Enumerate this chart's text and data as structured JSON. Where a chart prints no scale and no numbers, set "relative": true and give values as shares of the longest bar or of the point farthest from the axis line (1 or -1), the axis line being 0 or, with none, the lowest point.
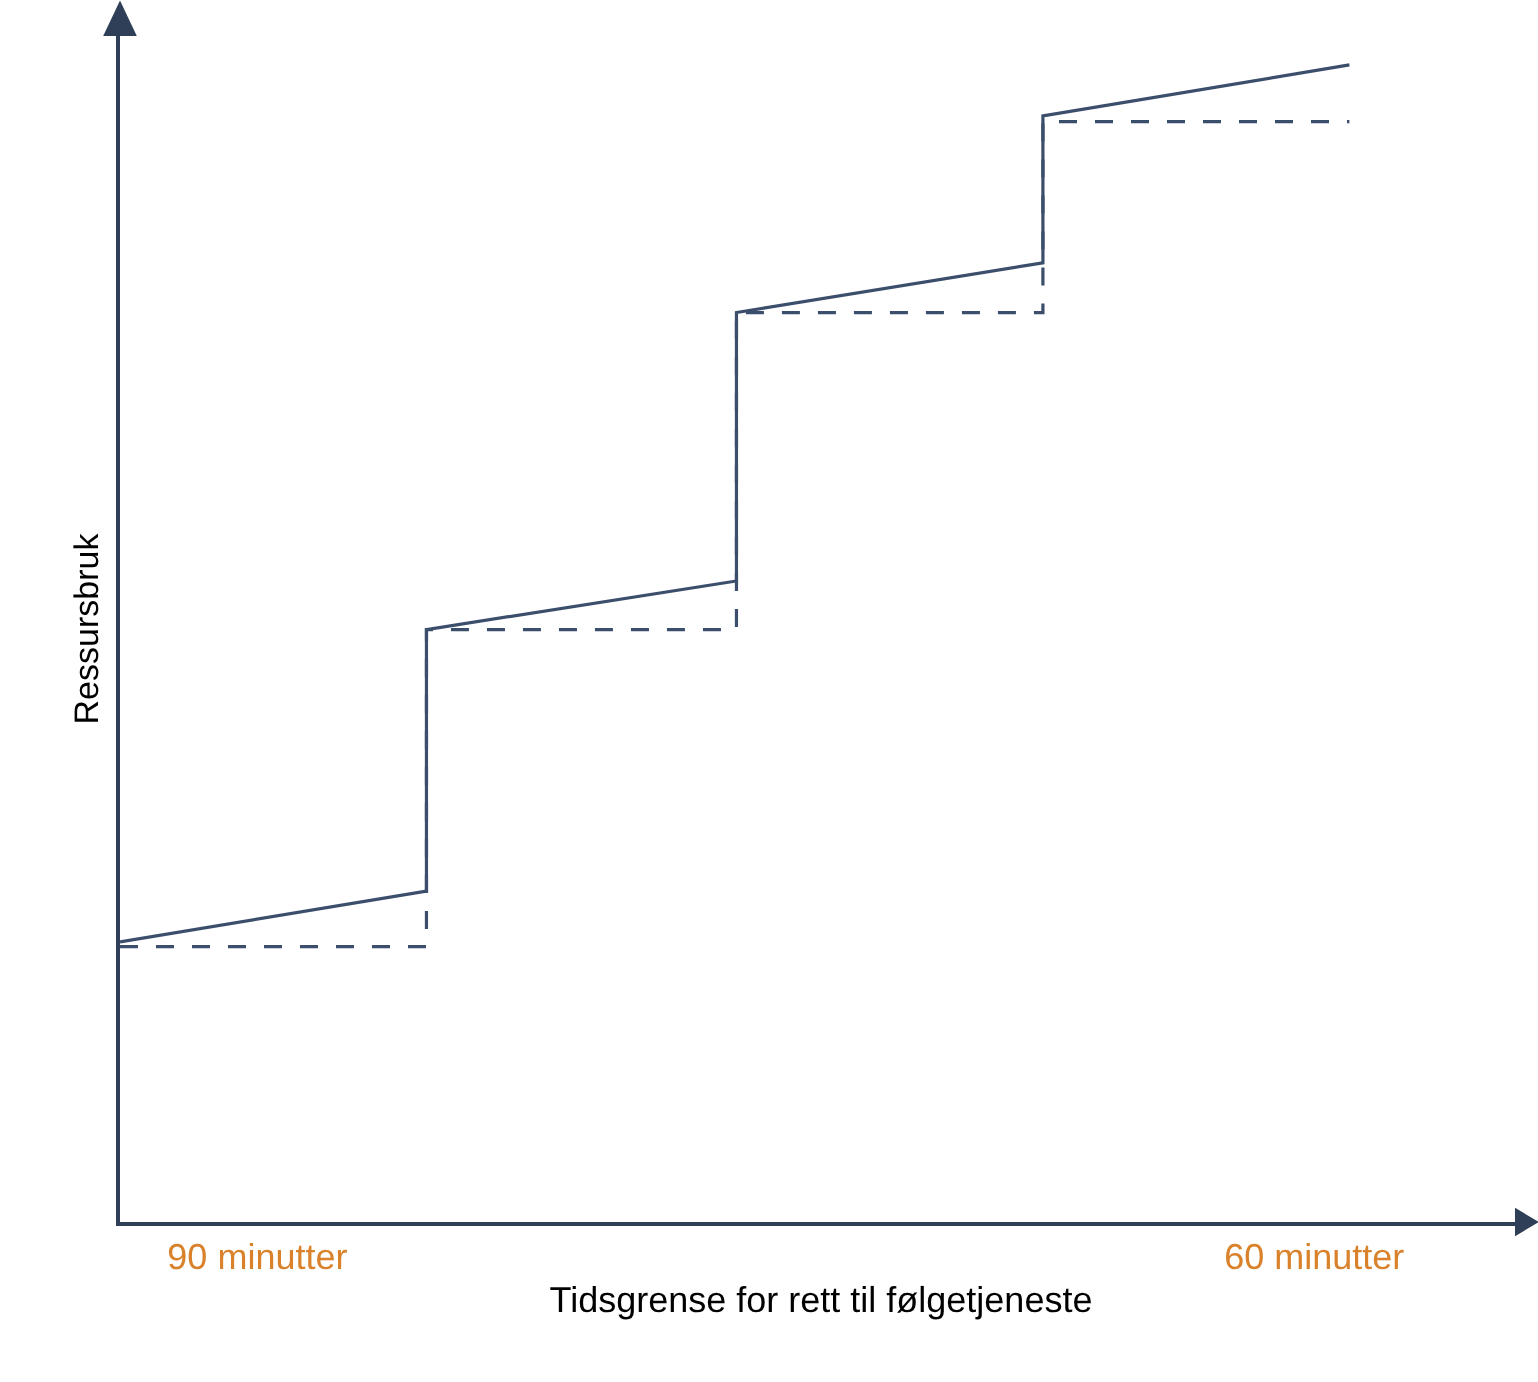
{
  "chart_data": {
    "type": "line",
    "relative": true,
    "xlabel": "Tidsgrense for rett til følgetjeneste",
    "ylabel": "Ressursbruk",
    "tick_labels": "x",
    "marker": "none",
    "xlim": [
      93.9,
      54.1
    ],
    "xticks": [
      {
        "value": 90,
        "label": "90 minutter"
      },
      {
        "value": 60,
        "label": "60 minutter"
      }
    ],
    "series": [
      {
        "color": "#3b4e6b",
        "line_style": "solid",
        "x": [
          93.9,
          85.2,
          85.2,
          76.4,
          76.4,
          67.7,
          67.7,
          59
        ],
        "values": [
          0.242,
          0.286,
          0.512,
          0.554,
          0.786,
          0.829,
          0.956,
          1
        ]
      },
      {
        "color": "#3b4e6b",
        "line_style": "dashed",
        "x": [
          93.9,
          85.2,
          85.2,
          76.4,
          76.4,
          67.7,
          67.7,
          59
        ],
        "values": [
          0.238,
          0.238,
          0.512,
          0.512,
          0.786,
          0.786,
          0.951,
          0.951
        ]
      }
    ]
  }
}
